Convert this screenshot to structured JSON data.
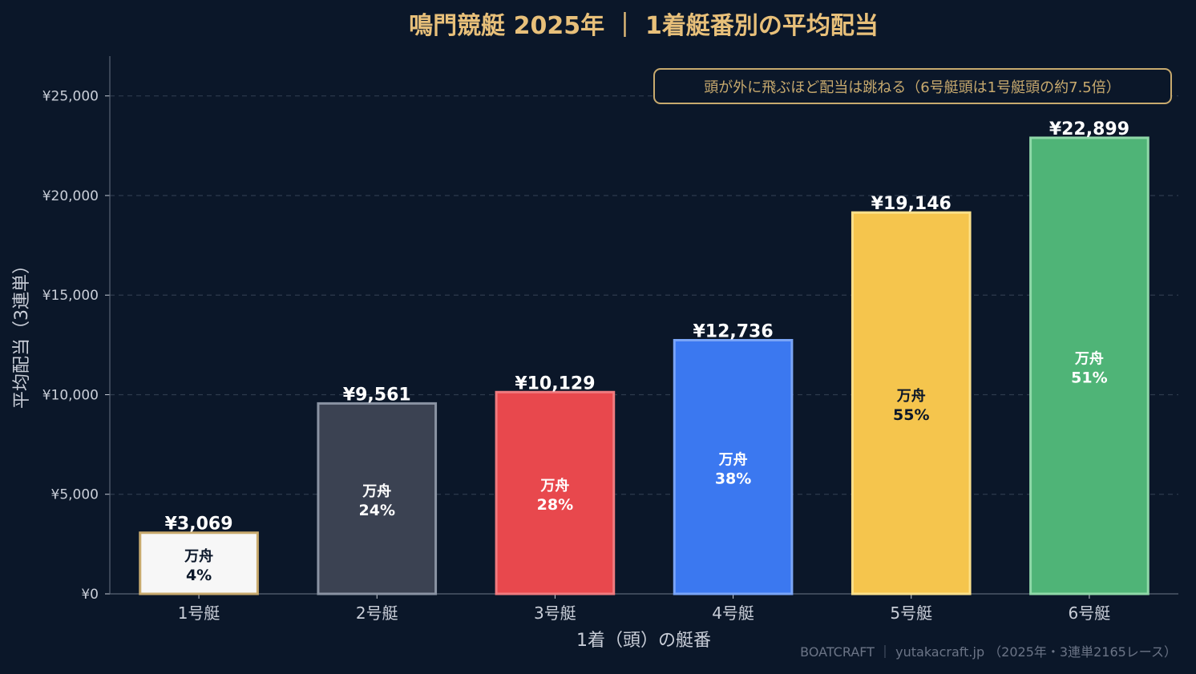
{
  "chart_data": {
    "type": "bar",
    "title": "鳴門競艇 2025年 ｜ 1着艇番別の平均配当",
    "xlabel": "1着（頭）の艇番",
    "ylabel": "平均配当（3連単）",
    "ylim": [
      0,
      27000
    ],
    "yticks": [
      0,
      5000,
      10000,
      15000,
      20000,
      25000
    ],
    "ytick_labels": [
      "¥0",
      "¥5,000",
      "¥10,000",
      "¥15,000",
      "¥20,000",
      "¥25,000"
    ],
    "grid": true,
    "categories": [
      "1号艇",
      "2号艇",
      "3号艇",
      "4号艇",
      "5号艇",
      "6号艇"
    ],
    "values": [
      3069,
      9561,
      10129,
      12736,
      19146,
      22899
    ],
    "value_labels": [
      "¥3,069",
      "¥9,561",
      "¥10,129",
      "¥12,736",
      "¥19,146",
      "¥22,899"
    ],
    "inner_label_prefix": "万舟",
    "inner_labels": [
      "4%",
      "24%",
      "28%",
      "38%",
      "55%",
      "51%"
    ],
    "bar_colors": [
      "#f7f7f7",
      "#3b4252",
      "#e8484d",
      "#3b78f0",
      "#f5c54d",
      "#4fb477"
    ],
    "bar_edge_colors": [
      "#c8aa6e",
      "#8a93a3",
      "#f07b7f",
      "#7aa5f7",
      "#fbe08a",
      "#8fd8a8"
    ],
    "inner_text_colors": [
      "#0b1729",
      "#ffffff",
      "#ffffff",
      "#ffffff",
      "#0b1729",
      "#ffffff"
    ],
    "annotation": "頭が外に飛ぶほど配当は跳ねる（6号艇頭は1号艇頭の約7.5倍）",
    "footer": "BOATCRAFT ｜ yutakacraft.jp （2025年・3連単2165レース）"
  },
  "colors": {
    "background": "#0b1729",
    "title": "#e8c07a",
    "axis_text": "#c9ced8",
    "grid": "#2e3b4e",
    "annotation_border": "#c8aa6e",
    "annotation_text": "#c8aa6e",
    "value_label": "#ffffff",
    "footer": "#6b7486"
  }
}
